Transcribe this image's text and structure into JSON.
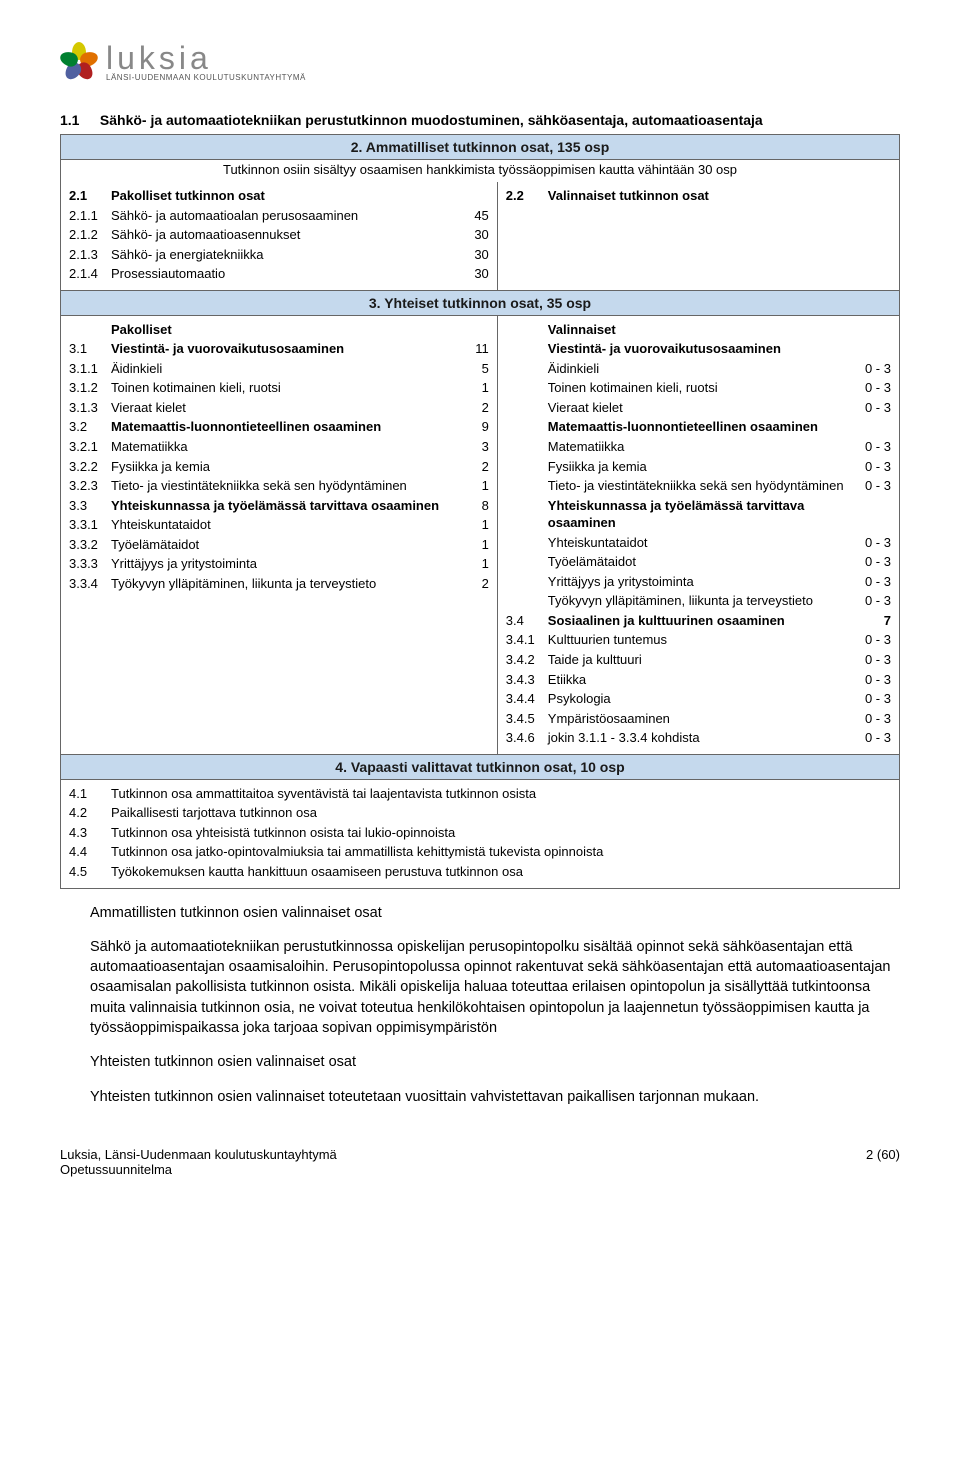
{
  "logo": {
    "name": "luksia",
    "sub": "LÄNSI-UUDENMAAN KOULUTUSKUNTAYHTYMÄ"
  },
  "heading": {
    "num": "1.1",
    "text": "Sähkö- ja automaatiotekniikan perustutkinnon muodostuminen, sähköasentaja, automaatioasentaja"
  },
  "band2": {
    "title": "2. Ammatilliset tutkinnon osat, 135 osp",
    "sub": "Tutkinnon osiin sisältyy osaamisen hankkimista työssäoppimisen kautta vähintään 30 osp"
  },
  "sec2left": {
    "title_code": "2.1",
    "title_text": "Pakolliset tutkinnon osat",
    "rows": [
      {
        "code": "2.1.1",
        "text": "Sähkö- ja automaatioalan perusosaaminen",
        "val": "45"
      },
      {
        "code": "2.1.2",
        "text": "Sähkö- ja automaatioasennukset",
        "val": "30"
      },
      {
        "code": "2.1.3",
        "text": "Sähkö- ja energiatekniikka",
        "val": "30"
      },
      {
        "code": "2.1.4",
        "text": "Prosessiautomaatio",
        "val": "30"
      }
    ]
  },
  "sec2right": {
    "title_code": "2.2",
    "title_text": "Valinnaiset tutkinnon osat"
  },
  "band3": "3. Yhteiset tutkinnon osat, 35 osp",
  "sec3left": {
    "title": "Pakolliset",
    "rows": [
      {
        "code": "3.1",
        "text": "Viestintä- ja vuorovaikutusosaaminen",
        "val": "11",
        "bold": true
      },
      {
        "code": "3.1.1",
        "text": "Äidinkieli",
        "val": "5"
      },
      {
        "code": "3.1.2",
        "text": "Toinen kotimainen kieli, ruotsi",
        "val": "1"
      },
      {
        "code": "3.1.3",
        "text": "Vieraat kielet",
        "val": "2"
      },
      {
        "code": "3.2",
        "text": "Matemaattis-luonnontieteellinen osaaminen",
        "val": "9",
        "bold": true
      },
      {
        "code": "3.2.1",
        "text": "Matematiikka",
        "val": "3"
      },
      {
        "code": "3.2.2",
        "text": "Fysiikka ja kemia",
        "val": "2"
      },
      {
        "code": "3.2.3",
        "text": "Tieto- ja viestintätekniikka sekä sen hyödyntäminen",
        "val": "1"
      },
      {
        "code": "3.3",
        "text": "Yhteiskunnassa ja työelämässä tarvittava osaaminen",
        "val": "8",
        "bold": true
      },
      {
        "code": "3.3.1",
        "text": "Yhteiskuntataidot",
        "val": "1"
      },
      {
        "code": "3.3.2",
        "text": "Työelämätaidot",
        "val": "1"
      },
      {
        "code": "3.3.3",
        "text": "Yrittäjyys ja yritystoiminta",
        "val": "1"
      },
      {
        "code": "3.3.4",
        "text": "Työkyvyn ylläpitäminen, liikunta ja terveystieto",
        "val": "2"
      }
    ]
  },
  "sec3right": {
    "title": "Valinnaiset",
    "rows": [
      {
        "code": "",
        "text": "Viestintä- ja vuorovaikutusosaaminen",
        "range": "",
        "bold": true
      },
      {
        "code": "",
        "text": "Äidinkieli",
        "range": "0 - 3"
      },
      {
        "code": "",
        "text": "Toinen kotimainen kieli, ruotsi",
        "range": "0 - 3"
      },
      {
        "code": "",
        "text": "Vieraat kielet",
        "range": "0 - 3"
      },
      {
        "code": "",
        "text": "Matemaattis-luonnontieteellinen osaaminen",
        "range": "",
        "bold": true
      },
      {
        "code": "",
        "text": "Matematiikka",
        "range": "0 - 3"
      },
      {
        "code": "",
        "text": "Fysiikka ja kemia",
        "range": "0 - 3"
      },
      {
        "code": "",
        "text": "Tieto- ja viestintätekniikka sekä sen hyödyntäminen",
        "range": "0 - 3"
      },
      {
        "code": "",
        "text": "Yhteiskunnassa ja työelämässä tarvittava osaaminen",
        "range": "",
        "bold": true
      },
      {
        "code": "",
        "text": "Yhteiskuntataidot",
        "range": "0 - 3"
      },
      {
        "code": "",
        "text": "Työelämätaidot",
        "range": "0 - 3"
      },
      {
        "code": "",
        "text": "Yrittäjyys ja yritystoiminta",
        "range": "0 - 3"
      },
      {
        "code": "",
        "text": "Työkyvyn ylläpitäminen, liikunta ja terveystieto",
        "range": "0 - 3"
      },
      {
        "code": "3.4",
        "text": "Sosiaalinen ja kulttuurinen osaaminen",
        "range": "7",
        "bold": true
      },
      {
        "code": "3.4.1",
        "text": "Kulttuurien tuntemus",
        "range": "0 - 3"
      },
      {
        "code": "3.4.2",
        "text": "Taide ja kulttuuri",
        "range": "0 - 3"
      },
      {
        "code": "3.4.3",
        "text": "Etiikka",
        "range": "0 - 3"
      },
      {
        "code": "3.4.4",
        "text": "Psykologia",
        "range": "0 - 3"
      },
      {
        "code": "3.4.5",
        "text": "Ympäristöosaaminen",
        "range": "0 - 3"
      },
      {
        "code": "3.4.6",
        "text": "jokin 3.1.1 - 3.3.4 kohdista",
        "range": "0 - 3"
      }
    ]
  },
  "band4": "4. Vapaasti valittavat tutkinnon osat, 10 osp",
  "sec4": [
    {
      "code": "4.1",
      "text": "Tutkinnon osa ammattitaitoa syventävistä tai laajentavista tutkinnon osista"
    },
    {
      "code": "4.2",
      "text": "Paikallisesti tarjottava tutkinnon osa"
    },
    {
      "code": "4.3",
      "text": "Tutkinnon osa yhteisistä tutkinnon osista tai lukio-opinnoista"
    },
    {
      "code": "4.4",
      "text": "Tutkinnon osa jatko-opintovalmiuksia tai ammatillista kehittymistä tukevista opinnoista"
    },
    {
      "code": "4.5",
      "text": "Työkokemuksen kautta hankittuun osaamiseen perustuva tutkinnon osa"
    }
  ],
  "body": {
    "h1": "Ammatillisten tutkinnon osien valinnaiset osat",
    "p1": "Sähkö ja automaatiotekniikan perustutkinnossa opiskelijan perusopintopolku sisältää opinnot sekä sähköasentajan että automaatioasentajan osaamisaloihin. Perusopintopolussa opinnot rakentuvat sekä sähköasentajan että automaatioasentajan osaamisalan pakollisista tutkinnon osista. Mikäli opiskelija haluaa toteuttaa erilaisen opintopolun ja sisällyttää tutkintoonsa muita valinnaisia tutkinnon osia, ne voivat toteutua henkilökohtaisen opintopolun ja laajennetun työssäoppimisen kautta ja työssäoppimispaikassa joka tarjoaa sopivan oppimisympäristön",
    "h2": "Yhteisten tutkinnon osien valinnaiset osat",
    "p2": "Yhteisten tutkinnon osien valinnaiset toteutetaan vuosittain vahvistettavan paikallisen tarjonnan mukaan."
  },
  "footer": {
    "left1": "Luksia, Länsi-Uudenmaan koulutuskuntayhtymä",
    "left2": "Opetussuunnitelma",
    "right": "2 (60)"
  }
}
